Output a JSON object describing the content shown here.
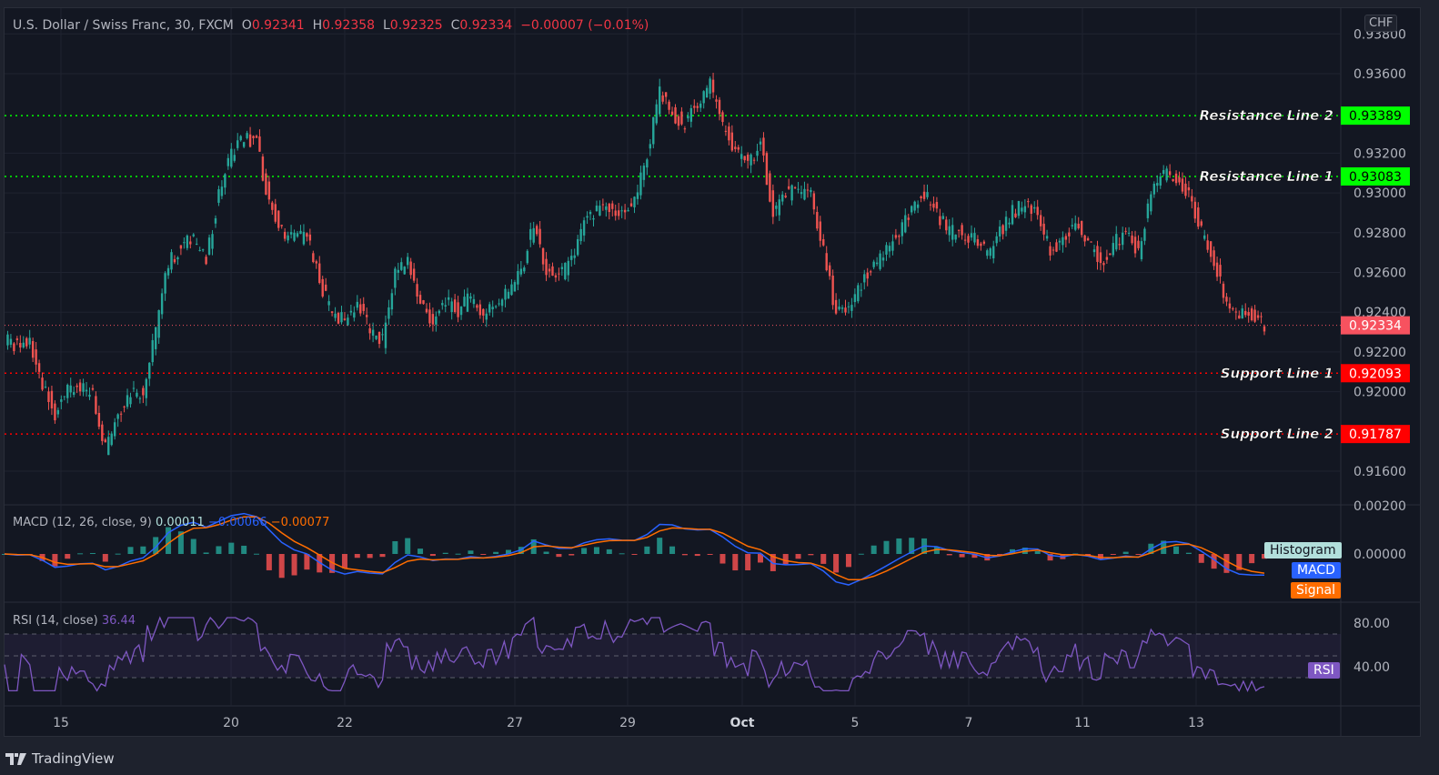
{
  "header": {
    "symbol": "U.S. Dollar / Swiss Franc, 30, FXCM",
    "o_label": "O",
    "open": "0.92341",
    "h_label": "H",
    "high": "0.92358",
    "l_label": "L",
    "low": "0.92325",
    "c_label": "C",
    "close": "0.92334",
    "change": "−0.00007 (−0.01%)"
  },
  "currency": "CHF",
  "brand": "TradingView",
  "macd": {
    "title": "MACD (12, 26, close, 9)",
    "histogram": "0.00011",
    "macd": "−0.00066",
    "signal": "−0.00077",
    "legend": [
      "Histogram",
      "MACD",
      "Signal"
    ],
    "axis": [
      "0.00200",
      "0.00000"
    ]
  },
  "rsi": {
    "title": "RSI (14, close)",
    "value": "36.44",
    "tag": "RSI",
    "axis": [
      "80.00",
      "40.00"
    ]
  },
  "colors": {
    "up": "#26a69a",
    "down": "#ef5350",
    "resistance": "#00ff00",
    "support": "#ff0000",
    "macd": "#2962ff",
    "signal": "#ff6d00",
    "rsi": "#7e57c2",
    "current": "#f7525f"
  },
  "chart_data": {
    "type": "candlestick",
    "title": "U.S. Dollar / Swiss Franc, 30, FXCM",
    "ylim": [
      0.915,
      0.938
    ],
    "y_ticks": [
      "0.93800",
      "0.93600",
      "0.93200",
      "0.93000",
      "0.92800",
      "0.92600",
      "0.92400",
      "0.92200",
      "0.92000",
      "0.91600"
    ],
    "x_ticks": [
      "15",
      "20",
      "22",
      "27",
      "29",
      "Oct",
      "5",
      "7",
      "11",
      "13"
    ],
    "levels": [
      {
        "name": "Resistance Line 2",
        "value": "0.93389",
        "kind": "resistance"
      },
      {
        "name": "Resistance Line 1",
        "value": "0.93083",
        "kind": "resistance"
      },
      {
        "name": "Support Line 1",
        "value": "0.92093",
        "kind": "support"
      },
      {
        "name": "Support Line 2",
        "value": "0.91787",
        "kind": "support"
      }
    ],
    "last_price": "0.92334",
    "closes": [
      0.9226,
      0.9222,
      0.9225,
      0.9205,
      0.9188,
      0.92,
      0.9203,
      0.9198,
      0.9172,
      0.919,
      0.92,
      0.92,
      0.923,
      0.9265,
      0.9272,
      0.9278,
      0.9265,
      0.93,
      0.932,
      0.9328,
      0.9325,
      0.9295,
      0.928,
      0.9278,
      0.9278,
      0.9255,
      0.924,
      0.9235,
      0.9245,
      0.923,
      0.9225,
      0.926,
      0.9265,
      0.9245,
      0.9235,
      0.9245,
      0.924,
      0.9248,
      0.9238,
      0.9245,
      0.925,
      0.926,
      0.9285,
      0.926,
      0.9258,
      0.9265,
      0.9285,
      0.929,
      0.9292,
      0.929,
      0.9295,
      0.932,
      0.935,
      0.934,
      0.9335,
      0.9345,
      0.9355,
      0.9335,
      0.932,
      0.9315,
      0.9325,
      0.929,
      0.93,
      0.93,
      0.93,
      0.927,
      0.924,
      0.924,
      0.9255,
      0.9262,
      0.927,
      0.928,
      0.929,
      0.93,
      0.929,
      0.928,
      0.928,
      0.9278,
      0.9268,
      0.928,
      0.929,
      0.9295,
      0.929,
      0.927,
      0.9275,
      0.9285,
      0.9275,
      0.9265,
      0.9275,
      0.9278,
      0.927,
      0.93,
      0.931,
      0.9305,
      0.93,
      0.928,
      0.9265,
      0.9245,
      0.9238,
      0.9238,
      0.92334
    ]
  }
}
